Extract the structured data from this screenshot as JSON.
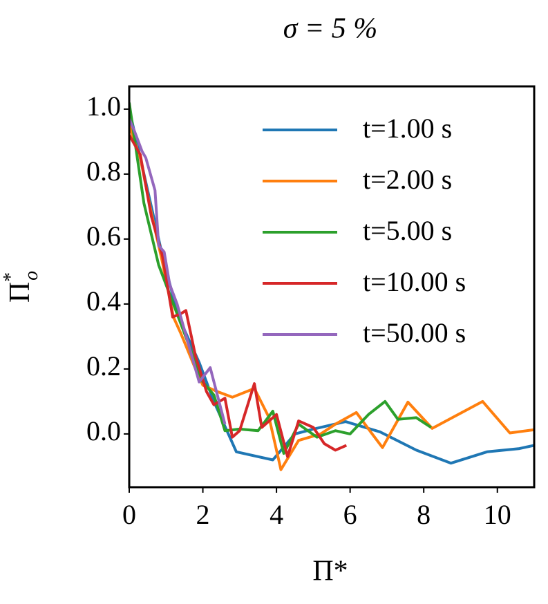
{
  "chart_data": {
    "type": "line",
    "title": "σ = 5 %",
    "xlabel": "Π*",
    "ylabel": {
      "base": "Π",
      "sup": "*",
      "sub": "o"
    },
    "xlim": [
      0,
      11
    ],
    "ylim": [
      -0.164,
      1.07
    ],
    "xticks": [
      0,
      2,
      4,
      6,
      8,
      10
    ],
    "yticks": [
      {
        "value": 0,
        "label": "0.0"
      },
      0.2,
      0.4,
      0.6,
      0.8,
      {
        "value": 1,
        "label": "1.0"
      }
    ],
    "legend": "upper right",
    "series": [
      {
        "name": "t=1.00 s",
        "color": "#1f77b4",
        "x": [
          0,
          0.3,
          0.6,
          0.9,
          1.2,
          1.5,
          1.9,
          2.3,
          2.91,
          3.9,
          4.5,
          5.0,
          5.88,
          6.82,
          7.8,
          8.74,
          9.72,
          10.6,
          11
        ],
        "values": [
          1.0,
          0.85,
          0.7,
          0.55,
          0.42,
          0.32,
          0.22,
          0.1,
          -0.055,
          -0.08,
          0.0,
          0.015,
          0.038,
          0.006,
          -0.05,
          -0.09,
          -0.055,
          -0.045,
          -0.035
        ]
      },
      {
        "name": "t=2.00 s",
        "color": "#ff7f0e",
        "x": [
          0,
          0.3,
          0.6,
          0.9,
          1.2,
          1.4,
          1.8,
          2.0,
          2.4,
          2.8,
          3.4,
          3.8,
          4.12,
          4.6,
          5.2,
          5.6,
          6.17,
          6.6,
          6.88,
          7.57,
          8.23,
          9.6,
          10.34,
          11
        ],
        "values": [
          0.95,
          0.85,
          0.68,
          0.53,
          0.36,
          0.31,
          0.2,
          0.15,
          0.13,
          0.113,
          0.14,
          0.05,
          -0.11,
          -0.02,
          0.0,
          0.03,
          0.066,
          0.0,
          -0.042,
          0.098,
          0.017,
          0.1,
          0.003,
          0.013
        ]
      },
      {
        "name": "t=5.00 s",
        "color": "#2ca02c",
        "x": [
          0,
          0.4,
          0.8,
          1.2,
          1.6,
          2.0,
          2.3,
          2.6,
          3.0,
          3.5,
          3.9,
          4.2,
          4.6,
          5.1,
          5.6,
          6.0,
          6.5,
          6.95,
          7.3,
          7.8,
          8.2
        ],
        "values": [
          1.02,
          0.71,
          0.52,
          0.4,
          0.28,
          0.16,
          0.12,
          0.01,
          0.015,
          0.01,
          0.07,
          -0.06,
          0.03,
          -0.01,
          0.01,
          0.0,
          0.06,
          0.1,
          0.045,
          0.05,
          0.02
        ]
      },
      {
        "name": "t=10.00 s",
        "color": "#d62728",
        "x": [
          0,
          0.3,
          0.6,
          0.9,
          1.18,
          1.4,
          1.54,
          1.8,
          2.1,
          2.3,
          2.6,
          2.8,
          3.0,
          3.4,
          3.6,
          4.0,
          4.3,
          4.6,
          5.0,
          5.3,
          5.6,
          5.9
        ],
        "values": [
          0.92,
          0.86,
          0.67,
          0.55,
          0.36,
          0.37,
          0.38,
          0.24,
          0.13,
          0.09,
          0.11,
          -0.01,
          0.01,
          0.155,
          0.02,
          0.06,
          -0.07,
          0.04,
          0.02,
          -0.03,
          -0.05,
          -0.035
        ]
      },
      {
        "name": "t=50.00 s",
        "color": "#9467bd",
        "x": [
          0,
          0.15,
          0.35,
          0.45,
          0.7,
          0.8,
          0.95,
          1.1,
          1.3,
          1.6,
          1.9,
          2.2,
          2.6
        ],
        "values": [
          0.97,
          0.93,
          0.87,
          0.85,
          0.75,
          0.58,
          0.56,
          0.46,
          0.4,
          0.28,
          0.16,
          0.204,
          0.03
        ]
      }
    ]
  }
}
